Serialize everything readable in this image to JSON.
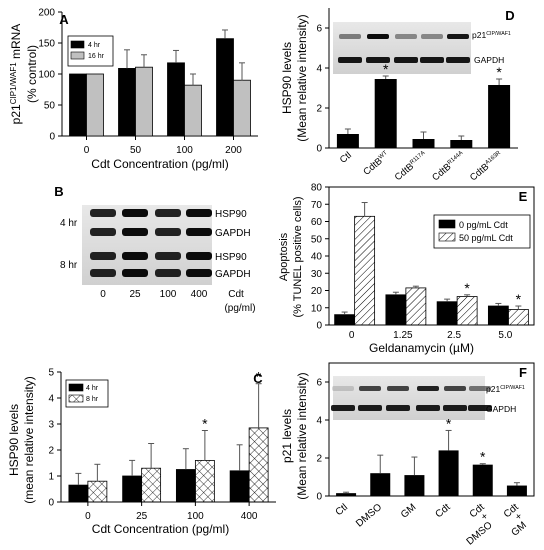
{
  "chart_data": [
    {
      "panel": "A",
      "type": "bar",
      "ylabel": "p21CIP1/WAF1 mRNA (% control)",
      "ylabel_parts": [
        "p21",
        "CIP1/WAF1",
        " mRNA",
        "(% control)"
      ],
      "xlabel": "Cdt Concentration (pg/ml)",
      "categories": [
        "0",
        "50",
        "100",
        "200"
      ],
      "ylim": [
        0,
        200
      ],
      "yticks": [
        "0",
        "50",
        "100",
        "150",
        "200"
      ],
      "legend": "top-left",
      "series": [
        {
          "name": "4 hr",
          "values": [
            100,
            109,
            118,
            157
          ],
          "errors": [
            0,
            30,
            20,
            14
          ],
          "color": "#000000",
          "pattern": "solid"
        },
        {
          "name": "16 hr",
          "values": [
            100,
            111,
            82,
            90
          ],
          "errors": [
            0,
            20,
            18,
            28
          ],
          "color": "#c0c0c0",
          "pattern": "solid"
        }
      ]
    },
    {
      "panel": "D",
      "type": "bar",
      "ylabel": "HSP90 levels (Mean relative intensity)",
      "ylabel_parts": [
        "HSP90 levels",
        "(Mean relative intensity)"
      ],
      "categories": [
        {
          "base": "Ctl",
          "sup": ""
        },
        {
          "base": "CdtB",
          "sup": "WT"
        },
        {
          "base": "CdtB",
          "sup": "R117A"
        },
        {
          "base": "CdtB",
          "sup": "R144A"
        },
        {
          "base": "CdtB",
          "sup": "A163R"
        }
      ],
      "ylim": [
        0,
        7
      ],
      "yticks": [
        "0",
        "2",
        "4",
        "6"
      ],
      "values": [
        0.7,
        3.45,
        0.45,
        0.4,
        3.15
      ],
      "errors": [
        0.25,
        0.15,
        0.35,
        0.2,
        0.3
      ],
      "significant": [
        false,
        true,
        false,
        false,
        true
      ],
      "blot_labels": [
        {
          "base": "p21",
          "sup": "CIP/WAF1"
        },
        {
          "base": "GAPDH",
          "sup": ""
        }
      ]
    },
    {
      "panel": "B",
      "type": "blot",
      "row_labels": [
        "4 hr",
        "8 hr"
      ],
      "band_labels": [
        "HSP90",
        "GAPDH",
        "HSP90",
        "GAPDH"
      ],
      "lanes": [
        "0",
        "25",
        "100",
        "400"
      ],
      "lane_title": [
        "Cdt",
        "(pg/ml)"
      ]
    },
    {
      "panel": "E",
      "type": "bar",
      "ylabel": "Apoptosis (% TUNEL positive cells)",
      "ylabel_parts": [
        "Apoptosis",
        "(% TUNEL positive cells)"
      ],
      "xlabel": "Geldanamycin (µM)",
      "categories": [
        "0",
        "1.25",
        "2.5",
        "5.0"
      ],
      "ylim": [
        0,
        80
      ],
      "yticks": [
        "0",
        "10",
        "20",
        "30",
        "40",
        "50",
        "60",
        "70",
        "80"
      ],
      "legend": "top-right",
      "series": [
        {
          "name": "0 pg/mL Cdt",
          "values": [
            6,
            17.5,
            13.5,
            11
          ],
          "errors": [
            1.5,
            1.5,
            1.5,
            1.5
          ],
          "color": "#000000",
          "pattern": "solid"
        },
        {
          "name": "50 pg/mL Cdt",
          "values": [
            63,
            21.5,
            16.5,
            9
          ],
          "errors": [
            8,
            1,
            1,
            2
          ],
          "color": "#ffffff",
          "pattern": "hatch"
        }
      ],
      "significant_on_series2": [
        false,
        false,
        true,
        true
      ]
    },
    {
      "panel": "C",
      "type": "bar",
      "ylabel": "HSP90 levels (mean relative intensity)",
      "ylabel_parts": [
        "HSP90 levels",
        "(mean relative intensity)"
      ],
      "xlabel": "Cdt Concentration (pg/ml)",
      "categories": [
        "0",
        "25",
        "100",
        "400"
      ],
      "ylim": [
        0,
        5
      ],
      "yticks": [
        "0",
        "1",
        "2",
        "3",
        "4",
        "5"
      ],
      "legend": "top-left",
      "series": [
        {
          "name": "4 hr",
          "values": [
            0.65,
            1.0,
            1.25,
            1.2
          ],
          "errors": [
            0.45,
            0.6,
            0.8,
            1.0
          ],
          "color": "#000000",
          "pattern": "solid"
        },
        {
          "name": "8 hr",
          "values": [
            0.8,
            1.3,
            1.6,
            2.85
          ],
          "errors": [
            0.65,
            0.95,
            1.15,
            1.7
          ],
          "color": "#ffffff",
          "pattern": "crosshatch"
        }
      ],
      "significant_on_series2": [
        false,
        false,
        true,
        true
      ]
    },
    {
      "panel": "F",
      "type": "bar",
      "ylabel": "p21 levels (Mean relative intensity)",
      "ylabel_parts": [
        "p21 levels",
        "(Mean relative intensity)"
      ],
      "categories": [
        [
          "Ctl"
        ],
        [
          "DMSO"
        ],
        [
          "GM"
        ],
        [
          "Cdt"
        ],
        [
          "Cdt",
          "+",
          "DMSO"
        ],
        [
          "Cdt",
          "+",
          "GM"
        ]
      ],
      "ylim": [
        0,
        7
      ],
      "yticks": [
        "0",
        "2",
        "4",
        "6"
      ],
      "values": [
        0.15,
        1.2,
        1.1,
        2.4,
        1.65,
        0.55
      ],
      "errors": [
        0.05,
        0.95,
        0.95,
        1.05,
        0.05,
        0.15
      ],
      "significant": [
        false,
        false,
        false,
        true,
        true,
        false
      ],
      "blot_labels": [
        {
          "base": "p21",
          "sup": "CIP/WAF1"
        },
        {
          "base": "GAPDH",
          "sup": ""
        }
      ]
    }
  ]
}
